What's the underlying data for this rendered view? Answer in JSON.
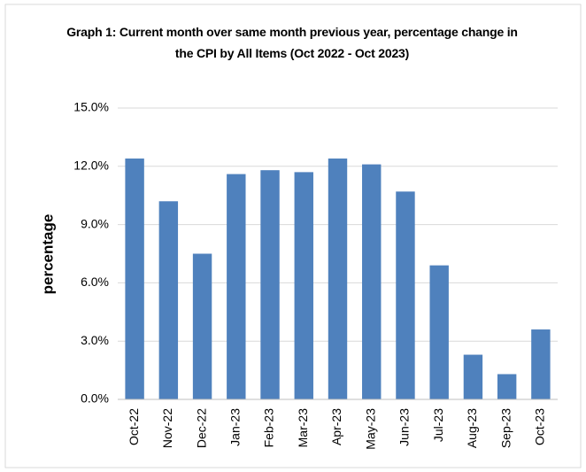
{
  "chart_data": {
    "type": "bar",
    "title": "Graph 1: Current month over same month previous year, percentage change in the CPI by All Items (Oct 2022 - Oct 2023)",
    "y_label": "percentage",
    "categories": [
      "Oct-22",
      "Nov-22",
      "Dec-22",
      "Jan-23",
      "Feb-23",
      "Mar-23",
      "Apr-23",
      "May-23",
      "Jun-23",
      "Jul-23",
      "Aug-23",
      "Sep-23",
      "Oct-23"
    ],
    "values": [
      12.4,
      10.2,
      7.5,
      11.6,
      11.8,
      11.7,
      12.4,
      12.1,
      10.7,
      6.9,
      2.3,
      1.3,
      3.6
    ],
    "color": "#4f81bd",
    "ylim": [
      0,
      15
    ],
    "yticks": [
      {
        "value": 0,
        "label": "0.0%"
      },
      {
        "value": 3,
        "label": "3.0%"
      },
      {
        "value": 6,
        "label": "6.0%"
      },
      {
        "value": 9,
        "label": "9.0%"
      },
      {
        "value": 12,
        "label": "12.0%"
      },
      {
        "value": 15,
        "label": "15.0%"
      }
    ],
    "grid": true
  }
}
